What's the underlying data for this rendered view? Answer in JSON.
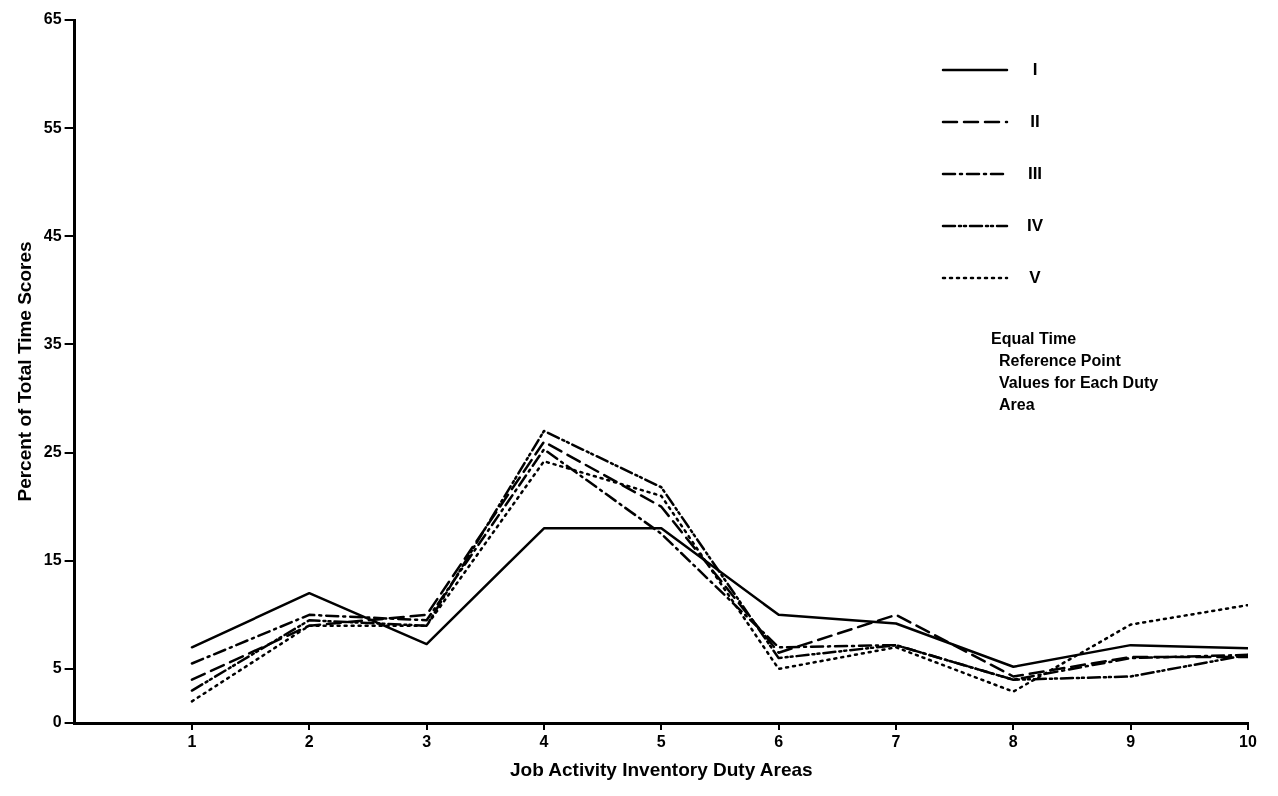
{
  "chart_data": {
    "type": "line",
    "xlabel": "Job Activity Inventory Duty Areas",
    "ylabel": "Percent of Total Time Scores",
    "x": [
      1,
      2,
      3,
      4,
      5,
      6,
      7,
      8,
      9,
      10
    ],
    "xlim": [
      0,
      10
    ],
    "xticks": [
      1,
      2,
      3,
      4,
      5,
      6,
      7,
      8,
      9,
      10
    ],
    "ylim": [
      0,
      65
    ],
    "yticks": [
      0,
      5,
      15,
      25,
      35,
      45,
      55,
      65
    ],
    "grid": false,
    "legend": "top right",
    "marker": "none",
    "annotations": [
      "Equal Time Reference Point Values for Each Duty Area"
    ],
    "series": [
      {
        "name": "I",
        "color": "#000000",
        "line_style": "solid",
        "values": [
          7,
          12,
          7.3,
          18,
          18,
          10,
          9.2,
          5.2,
          7.2,
          6.9
        ]
      },
      {
        "name": "II",
        "color": "#000000",
        "line_style": "dashed",
        "values": [
          4,
          9,
          10,
          26,
          20,
          6.5,
          10,
          4.3,
          6.1,
          6.1
        ]
      },
      {
        "name": "III",
        "color": "#000000",
        "line_style": "dashdot",
        "values": [
          5.5,
          10,
          9.5,
          25.3,
          17.5,
          7,
          7.2,
          4,
          6,
          6.3
        ]
      },
      {
        "name": "IV",
        "color": "#000000",
        "line_style": "dashdotdot",
        "values": [
          3,
          9.5,
          9,
          27,
          21.8,
          6,
          7.2,
          4,
          4.3,
          6.3
        ]
      },
      {
        "name": "V",
        "color": "#000000",
        "line_style": "dotted",
        "values": [
          2,
          9,
          9,
          24.2,
          21,
          5,
          7,
          2.9,
          9.1,
          10.9
        ]
      }
    ]
  }
}
